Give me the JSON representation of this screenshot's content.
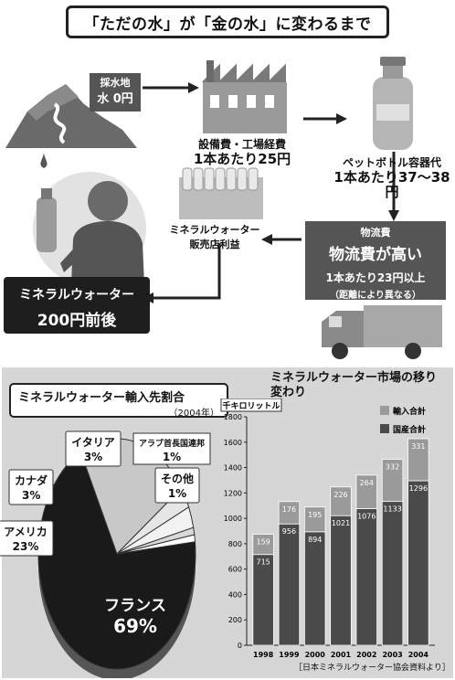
{
  "header": {
    "title": "「ただの水」が「金の水」に変わるまで"
  },
  "flow": {
    "source_label": "採水地",
    "source_value": "水 0円",
    "factory_label": "設備費・工場経費",
    "factory_value": "1本あたり25円",
    "bottle_label": "ペットボトル容器代",
    "bottle_value": "1本あたり37〜38円",
    "logistics_label": "物流費",
    "logistics_headline": "物流費が高い",
    "logistics_value": "1本あたり23円以上",
    "logistics_note": "（距離により異なる）",
    "retail_label1": "ミネラルウォーター",
    "retail_label2": "販売店利益",
    "final_label": "ミネラルウォーター",
    "final_value": "200円前後"
  },
  "chart_data": [
    {
      "type": "pie",
      "title": "ミネラルウォーター輸入先割合",
      "subtitle": "（2004年）",
      "slices": [
        {
          "label": "フランス",
          "value": 69
        },
        {
          "label": "アメリカ",
          "value": 23
        },
        {
          "label": "カナダ",
          "value": 3
        },
        {
          "label": "イタリア",
          "value": 3
        },
        {
          "label": "アラブ首長国連邦",
          "value": 1
        },
        {
          "label": "その他",
          "value": 1
        }
      ],
      "value_suffix": "%",
      "colors": [
        "#1a1a1a",
        "#c8c8c8",
        "#e6e6e6",
        "#f2f2f2",
        "#d9d9d9",
        "#ffffff"
      ]
    },
    {
      "type": "bar",
      "title": "ミネラルウォーター市場の移り変わり",
      "ylabel": "千キロリットル",
      "categories": [
        "1998",
        "1999",
        "2000",
        "2001",
        "2002",
        "2003",
        "2004"
      ],
      "series": [
        {
          "name": "国産合計",
          "values": [
            715,
            956,
            894,
            1021,
            1076,
            1133,
            1296
          ],
          "color": "#4a4a4a"
        },
        {
          "name": "輸入合計",
          "values": [
            159,
            176,
            195,
            226,
            264,
            332,
            331
          ],
          "color": "#9a9a9a"
        }
      ],
      "stacked": true,
      "ylim": [
        0,
        1800
      ],
      "yticks": [
        0,
        200,
        400,
        600,
        800,
        1000,
        1200,
        1400,
        1600,
        1800
      ],
      "source": "［日本ミネラルウォーター協会資料より］"
    }
  ]
}
